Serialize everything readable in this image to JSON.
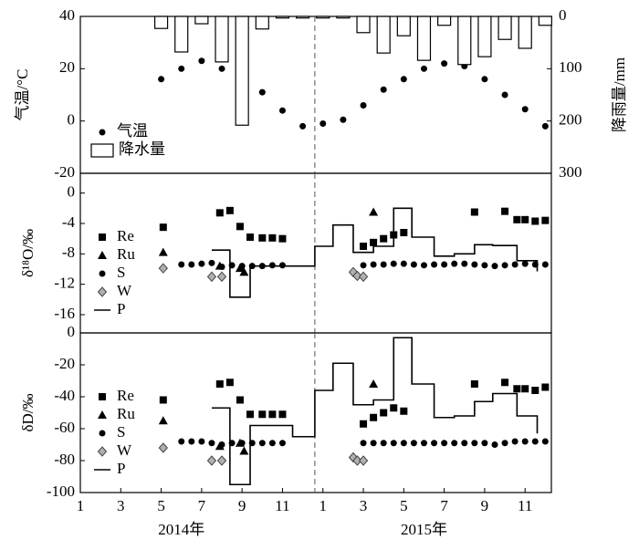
{
  "chart_data": [
    {
      "type": "combo",
      "ylabel": "气温/°C",
      "y2label": "降雨量/mm",
      "xlim": [
        1,
        24.3
      ],
      "ylim": [
        -20,
        40
      ],
      "yticks": [
        -20,
        0,
        20,
        40
      ],
      "y2lim": [
        0,
        300
      ],
      "y2ticks": [
        0,
        100,
        200,
        300
      ],
      "y2_inverted": true,
      "divider_x": 12.6,
      "legend": "lower left",
      "series": [
        {
          "name": "气温",
          "type": "scatter",
          "marker": "circle",
          "color": "#000000",
          "x": [
            5,
            6,
            7,
            8,
            9,
            10,
            11,
            12,
            13,
            14,
            15,
            16,
            17,
            18,
            19,
            20,
            21,
            22,
            23,
            24
          ],
          "values": [
            16,
            20,
            23,
            20,
            15,
            11,
            4,
            -2,
            -1,
            0.5,
            6,
            12,
            16,
            20,
            22,
            21,
            16,
            10,
            4.5,
            -2
          ]
        },
        {
          "name": "降水量",
          "type": "bar",
          "axis": "y2",
          "color": "#ffffff",
          "x": [
            5,
            6,
            7,
            8,
            9,
            10,
            11,
            12,
            13,
            14,
            15,
            16,
            17,
            18,
            19,
            20,
            21,
            22,
            23,
            24
          ],
          "values": [
            23,
            68,
            14,
            87,
            208,
            24,
            3,
            3,
            3,
            3,
            31,
            70,
            37,
            84,
            17,
            92,
            77,
            44,
            61,
            17
          ]
        }
      ]
    },
    {
      "type": "scatter",
      "ylabel": "δ¹⁸O/‰",
      "xlim": [
        1,
        24.3
      ],
      "ylim": [
        -18.4,
        2.6
      ],
      "yticks": [
        -16,
        -12,
        -8,
        -4,
        0
      ],
      "divider_x": 12.6,
      "legend": "lower left",
      "series": [
        {
          "name": "Re",
          "type": "scatter",
          "marker": "square",
          "color": "#000000",
          "x": [
            5.1,
            7.9,
            8.4,
            8.9,
            9.4,
            10,
            10.5,
            11,
            15,
            15.5,
            16,
            16.5,
            17,
            20.5,
            22,
            22.6,
            23,
            23.5,
            24
          ],
          "values": [
            -4.5,
            -2.6,
            -2.3,
            -4.4,
            -5.8,
            -5.9,
            -5.9,
            -6,
            -7,
            -6.5,
            -6,
            -5.5,
            -5.2,
            -2.5,
            -2.4,
            -3.5,
            -3.5,
            -3.7,
            -3.6
          ]
        },
        {
          "name": "Ru",
          "type": "scatter",
          "marker": "triangle",
          "color": "#000000",
          "x": [
            5.1,
            7.9,
            8.9,
            9.1,
            15.5
          ],
          "values": [
            -7.8,
            -9.6,
            -9.9,
            -10.4,
            -2.5
          ]
        },
        {
          "name": "S",
          "type": "scatter",
          "marker": "circle",
          "color": "#000000",
          "x": [
            6,
            6.5,
            7,
            7.5,
            8,
            8.5,
            9,
            9.5,
            10,
            10.5,
            11,
            15,
            15.5,
            16,
            16.5,
            17,
            17.5,
            18,
            18.5,
            19,
            19.5,
            20,
            20.5,
            21,
            21.5,
            22,
            22.5,
            23,
            23.5,
            24
          ],
          "values": [
            -9.4,
            -9.4,
            -9.3,
            -9.2,
            -9.7,
            -9.5,
            -9.6,
            -9.6,
            -9.6,
            -9.5,
            -9.5,
            -9.5,
            -9.4,
            -9.4,
            -9.3,
            -9.3,
            -9.4,
            -9.5,
            -9.4,
            -9.4,
            -9.3,
            -9.3,
            -9.4,
            -9.5,
            -9.6,
            -9.5,
            -9.4,
            -9.3,
            -9.4,
            -9.4
          ]
        },
        {
          "name": "W",
          "type": "scatter",
          "marker": "diamond",
          "color": "#b0b0b0",
          "x": [
            5.1,
            7.5,
            8,
            14.5,
            14.7,
            15
          ],
          "values": [
            -9.9,
            -11,
            -11,
            -10.4,
            -10.9,
            -11
          ]
        },
        {
          "name": "P",
          "type": "line",
          "color": "#000000",
          "x": [
            7.5,
            8.4,
            8.4,
            9.4,
            9.4,
            12.6,
            12.6,
            13.5,
            13.5,
            14.5,
            14.5,
            15.5,
            15.5,
            16.5,
            16.5,
            17.4,
            17.4,
            18.5,
            18.5,
            19.5,
            19.5,
            20.5,
            20.5,
            21.4,
            21.4,
            22.6,
            22.6,
            23.6,
            23.6
          ],
          "values": [
            -7.5,
            -7.5,
            -13.7,
            -13.7,
            -9.6,
            -9.6,
            -7,
            -7,
            -4.2,
            -4.2,
            -7.8,
            -7.8,
            -7,
            -7,
            -2,
            -2,
            -5.8,
            -5.8,
            -8.3,
            -8.3,
            -8,
            -8,
            -6.8,
            -6.8,
            -6.9,
            -6.9,
            -8.9,
            -8.9,
            -10.3
          ]
        }
      ]
    },
    {
      "type": "scatter",
      "ylabel": "δD/‰",
      "xlim": [
        1,
        24.3
      ],
      "ylim": [
        -100,
        0
      ],
      "yticks": [
        -100,
        -80,
        -60,
        -40,
        -20,
        0
      ],
      "xticks": [
        1,
        3,
        5,
        7,
        9,
        11,
        {
          "value": 13,
          "label": "1"
        },
        {
          "value": 15,
          "label": "3"
        },
        {
          "value": 17,
          "label": "5"
        },
        {
          "value": 19,
          "label": "7"
        },
        {
          "value": 21,
          "label": "9"
        },
        {
          "value": 23,
          "label": "11"
        }
      ],
      "year_labels": [
        "2014年",
        "2015年"
      ],
      "divider_x": 12.6,
      "legend": "lower left",
      "series": [
        {
          "name": "Re",
          "type": "scatter",
          "marker": "square",
          "color": "#000000",
          "x": [
            5.1,
            7.9,
            8.4,
            8.9,
            9.4,
            10,
            10.5,
            11,
            15,
            15.5,
            16,
            16.5,
            17,
            20.5,
            22,
            22.6,
            23,
            23.5,
            24
          ],
          "values": [
            -42,
            -32,
            -31,
            -42,
            -51,
            -51,
            -51,
            -51,
            -57,
            -53,
            -50,
            -47,
            -49,
            -32,
            -31,
            -35,
            -35,
            -36,
            -34
          ]
        },
        {
          "name": "Ru",
          "type": "scatter",
          "marker": "triangle",
          "color": "#000000",
          "x": [
            5.1,
            7.9,
            8.9,
            9.1,
            15.5
          ],
          "values": [
            -55,
            -71,
            -69,
            -74,
            -32
          ]
        },
        {
          "name": "S",
          "type": "scatter",
          "marker": "circle",
          "color": "#000000",
          "x": [
            6,
            6.5,
            7,
            7.5,
            8,
            8.5,
            9,
            9.5,
            10,
            10.5,
            11,
            15,
            15.5,
            16,
            16.5,
            17,
            17.5,
            18,
            18.5,
            19,
            19.5,
            20,
            20.5,
            21,
            21.5,
            22,
            22.5,
            23,
            23.5,
            24
          ],
          "values": [
            -68,
            -68,
            -68,
            -69,
            -70,
            -69,
            -69,
            -69,
            -69,
            -69,
            -69,
            -69,
            -69,
            -69,
            -69,
            -69,
            -69,
            -69,
            -69,
            -69,
            -69,
            -69,
            -69,
            -69,
            -70,
            -69,
            -68,
            -68,
            -68,
            -68
          ]
        },
        {
          "name": "W",
          "type": "scatter",
          "marker": "diamond",
          "color": "#b0b0b0",
          "x": [
            5.1,
            7.5,
            8,
            14.5,
            14.7,
            15
          ],
          "values": [
            -72,
            -80,
            -80,
            -78,
            -80,
            -80
          ]
        },
        {
          "name": "P",
          "type": "line",
          "color": "#000000",
          "x": [
            7.5,
            8.4,
            8.4,
            9.4,
            9.4,
            11.5,
            11.5,
            12.6,
            12.6,
            13.5,
            13.5,
            14.5,
            14.5,
            15.5,
            15.5,
            16.5,
            16.5,
            17.4,
            17.4,
            18.5,
            18.5,
            19.5,
            19.5,
            20.5,
            20.5,
            21.4,
            21.4,
            22.6,
            22.6,
            23.6,
            23.6
          ],
          "values": [
            -47,
            -47,
            -95,
            -95,
            -58,
            -58,
            -65,
            -65,
            -36,
            -36,
            -19,
            -19,
            -45,
            -45,
            -42,
            -42,
            -3,
            -3,
            -32,
            -32,
            -53,
            -53,
            -52,
            -52,
            -43,
            -43,
            -38,
            -38,
            -52,
            -52,
            -63
          ]
        }
      ]
    }
  ]
}
